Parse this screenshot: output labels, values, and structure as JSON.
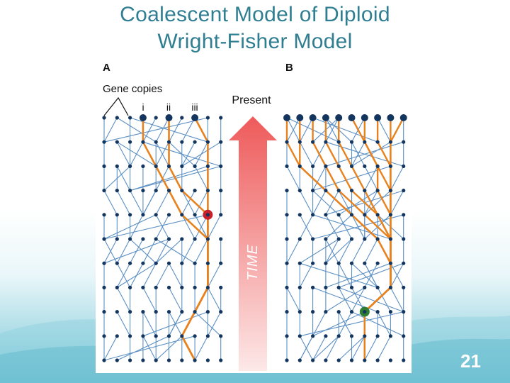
{
  "slide": {
    "title_line1": "Coalescent Model of Diploid",
    "title_line2": "Wright-Fisher Model",
    "number": "21"
  },
  "figure": {
    "panel_a_label": "A",
    "panel_b_label": "B",
    "gene_copies_label": "Gene copies",
    "copy_labels": [
      "i",
      "ii",
      "iii"
    ],
    "present_label": "Present",
    "time_label": "TIME"
  },
  "colors": {
    "title": "#2f7e91",
    "lineage_blue": "#5b8fc4",
    "node_dark": "#14365e",
    "lineage_orange": "#e8821e",
    "coalescence_a": "#c8202a",
    "coalescence_b": "#2e7d32",
    "arrow_top": "#ee5a5a",
    "arrow_bottom": "#fde4e4"
  },
  "diagram": {
    "rows": 11,
    "columns_per_panel": 10,
    "panel_a_sample_columns": [
      3,
      5,
      7
    ],
    "panel_a_coalescence_row": 4,
    "panel_b_coalescence_row": 8
  }
}
